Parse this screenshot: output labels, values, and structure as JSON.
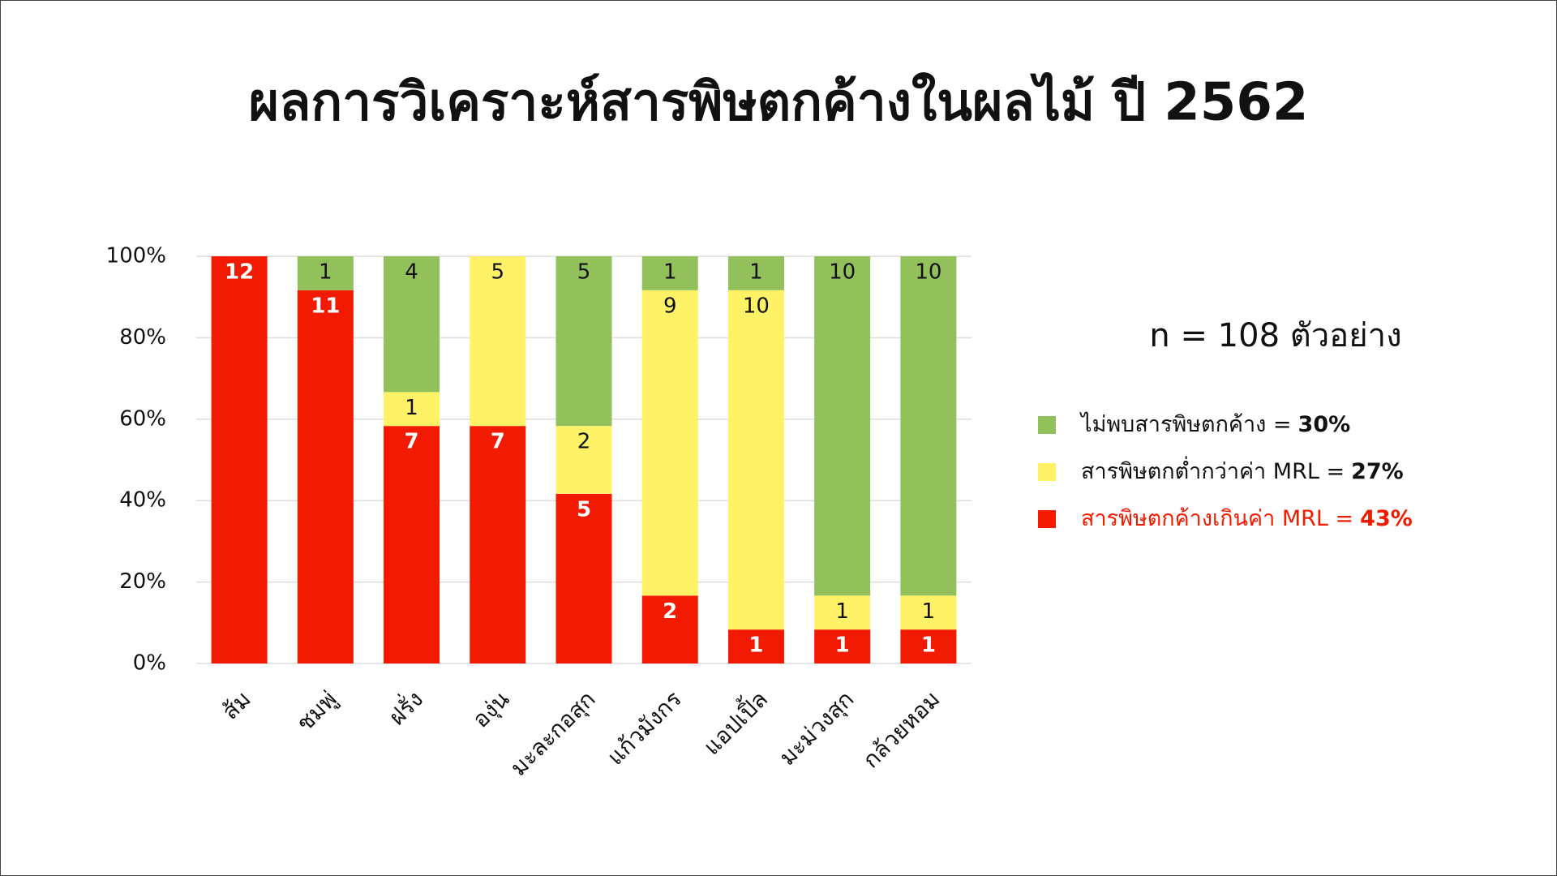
{
  "chart_data": {
    "type": "bar",
    "stacked": "percent",
    "title": "ผลการวิเคราะห์สารพิษตกค้างในผลไม้ ปี 2562",
    "annotation": "n = 108 ตัวอย่าง",
    "categories": [
      "ส้ม",
      "ชมพู่",
      "ฝรั่ง",
      "องุ่น",
      "มะละกอสุก",
      "แก้วมังกร",
      "แอปเปิ้ล",
      "มะม่วงสุก",
      "กล้วยหอม"
    ],
    "series": [
      {
        "name": "ไม่พบสารพิษตกค้าง =",
        "share_label": "30%",
        "color": "#92c05a",
        "text_color": "#111111",
        "values": [
          null,
          1,
          4,
          null,
          5,
          1,
          1,
          10,
          10
        ]
      },
      {
        "name": "สารพิษตกต่ำกว่าค่า MRL =",
        "share_label": "27%",
        "color": "#fff266",
        "text_color": "#111111",
        "values": [
          null,
          null,
          1,
          5,
          2,
          9,
          10,
          1,
          1
        ]
      },
      {
        "name": "สารพิษตกค้างเกินค่า MRL =",
        "share_label": "43%",
        "color": "#f21a00",
        "text_color": "#f21a00",
        "values": [
          12,
          11,
          7,
          7,
          5,
          2,
          1,
          1,
          1
        ]
      }
    ],
    "ylim": [
      0,
      100
    ],
    "yticks": [
      {
        "value": 0,
        "label": "0%"
      },
      {
        "value": 20,
        "label": "20%"
      },
      {
        "value": 40,
        "label": "40%"
      },
      {
        "value": 60,
        "label": "60%"
      },
      {
        "value": 80,
        "label": "80%"
      },
      {
        "value": 100,
        "label": "100%"
      }
    ],
    "grid": true
  }
}
